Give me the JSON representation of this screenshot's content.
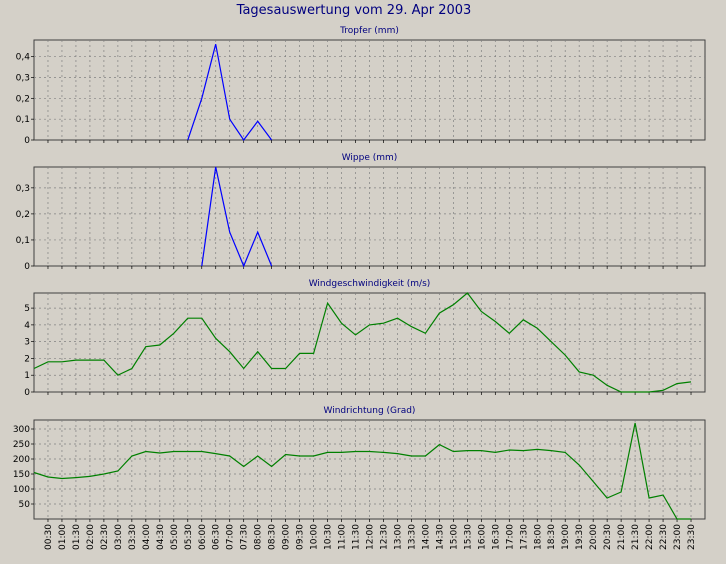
{
  "title": "Tagesauswertung vom 29. Apr 2003",
  "colors": {
    "background": "#d4d0c8",
    "plot_background": "#d4d0c8",
    "grid": "#808080",
    "title": "#00007f",
    "blue": "#0000ff",
    "green": "#008000"
  },
  "chart_data": [
    {
      "type": "line",
      "title": "Tropfer (mm)",
      "color": "#0000ff",
      "ylim": [
        0,
        0.48
      ],
      "yticks": [
        "0",
        "0,1",
        "0,2",
        "0,3",
        "0,4"
      ],
      "ytick_values": [
        0,
        0.1,
        0.2,
        0.3,
        0.4
      ],
      "grid": true,
      "series": [
        {
          "x": [
            "05:30",
            "06:00",
            "06:30",
            "07:00",
            "07:30",
            "08:00",
            "08:30"
          ],
          "values": [
            0,
            0.2,
            0.46,
            0.1,
            0,
            0.09,
            0
          ]
        }
      ]
    },
    {
      "type": "line",
      "title": "Wippe (mm)",
      "color": "#0000ff",
      "ylim": [
        0,
        0.38
      ],
      "yticks": [
        "0",
        "0,1",
        "0,2",
        "0,3"
      ],
      "ytick_values": [
        0,
        0.1,
        0.2,
        0.3
      ],
      "grid": true,
      "series": [
        {
          "x": [
            "06:00",
            "06:30",
            "07:00",
            "07:30",
            "08:00",
            "08:30"
          ],
          "values": [
            0,
            0.38,
            0.13,
            0,
            0.13,
            0
          ]
        }
      ]
    },
    {
      "type": "line",
      "title": "Windgeschwindigkeit (m/s)",
      "color": "#008000",
      "ylim": [
        0,
        5.9
      ],
      "yticks": [
        "0",
        "1",
        "2",
        "3",
        "4",
        "5"
      ],
      "ytick_values": [
        0,
        1,
        2,
        3,
        4,
        5
      ],
      "grid": true,
      "series": [
        {
          "x": [
            "00:00",
            "00:30",
            "01:00",
            "01:30",
            "02:00",
            "02:30",
            "03:00",
            "03:30",
            "04:00",
            "04:30",
            "05:00",
            "05:30",
            "06:00",
            "06:30",
            "07:00",
            "07:30",
            "08:00",
            "08:30",
            "09:00",
            "09:30",
            "10:00",
            "10:30",
            "11:00",
            "11:30",
            "12:00",
            "12:30",
            "13:00",
            "13:30",
            "14:00",
            "14:30",
            "15:00",
            "15:30",
            "16:00",
            "16:30",
            "17:00",
            "17:30",
            "18:00",
            "18:30",
            "19:00",
            "19:30",
            "20:00",
            "20:30",
            "21:00",
            "21:30",
            "22:00",
            "22:30",
            "23:00",
            "23:30"
          ],
          "values": [
            1.4,
            1.8,
            1.8,
            1.9,
            1.9,
            1.9,
            1.0,
            1.4,
            2.7,
            2.8,
            3.5,
            4.4,
            4.4,
            3.2,
            2.4,
            1.4,
            2.4,
            1.4,
            1.4,
            2.3,
            2.3,
            5.3,
            4.1,
            3.4,
            4.0,
            4.1,
            4.4,
            3.9,
            3.5,
            4.7,
            5.2,
            5.9,
            4.8,
            4.2,
            3.5,
            4.3,
            3.8,
            3.0,
            2.2,
            1.2,
            1.0,
            0.4,
            0,
            0,
            0,
            0.1,
            0.5,
            0.6
          ]
        }
      ]
    },
    {
      "type": "line",
      "title": "Windrichtung (Grad)",
      "color": "#008000",
      "ylim": [
        0,
        330
      ],
      "yticks": [
        "50",
        "100",
        "150",
        "200",
        "250",
        "300"
      ],
      "ytick_values": [
        50,
        100,
        150,
        200,
        250,
        300
      ],
      "grid": true,
      "series": [
        {
          "x": [
            "00:00",
            "00:30",
            "01:00",
            "01:30",
            "02:00",
            "02:30",
            "03:00",
            "03:30",
            "04:00",
            "04:30",
            "05:00",
            "05:30",
            "06:00",
            "06:30",
            "07:00",
            "07:30",
            "08:00",
            "08:30",
            "09:00",
            "09:30",
            "10:00",
            "10:30",
            "11:00",
            "11:30",
            "12:00",
            "12:30",
            "13:00",
            "13:30",
            "14:00",
            "14:30",
            "15:00",
            "15:30",
            "16:00",
            "16:30",
            "17:00",
            "17:30",
            "18:00",
            "18:30",
            "19:00",
            "19:30",
            "20:00",
            "20:30",
            "21:00",
            "21:30",
            "22:00",
            "22:30",
            "23:00",
            "23:30"
          ],
          "values": [
            155,
            140,
            135,
            138,
            142,
            150,
            160,
            210,
            225,
            220,
            225,
            225,
            225,
            218,
            210,
            175,
            210,
            175,
            215,
            210,
            210,
            222,
            222,
            225,
            225,
            222,
            218,
            210,
            210,
            248,
            225,
            228,
            228,
            222,
            230,
            228,
            232,
            228,
            222,
            180,
            125,
            70,
            90,
            320,
            70,
            80,
            0,
            0
          ]
        }
      ]
    }
  ],
  "x_axis": {
    "labels": [
      "00:30",
      "01:00",
      "01:30",
      "02:00",
      "02:30",
      "03:00",
      "03:30",
      "04:00",
      "04:30",
      "05:00",
      "05:30",
      "06:00",
      "06:30",
      "07:00",
      "07:30",
      "08:00",
      "08:30",
      "09:00",
      "09:30",
      "10:00",
      "10:30",
      "11:00",
      "11:30",
      "12:00",
      "12:30",
      "13:00",
      "13:30",
      "14:00",
      "14:30",
      "15:00",
      "15:30",
      "16:00",
      "16:30",
      "17:00",
      "17:30",
      "18:00",
      "18:30",
      "19:00",
      "19:30",
      "20:00",
      "20:30",
      "21:00",
      "21:30",
      "22:00",
      "22:30",
      "23:00",
      "23:30"
    ]
  }
}
